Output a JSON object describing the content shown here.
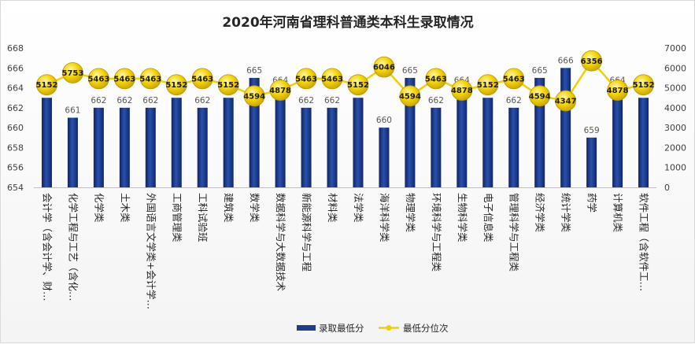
{
  "chart_data": {
    "type": "bar",
    "title": "2020年河南省理科普通类本科生录取情况",
    "categories": [
      "会计学（含会计学、财…",
      "化学工程与工艺（含化…",
      "化学类",
      "土木类",
      "外国语言文学类+会计学…",
      "工商管理类",
      "工科试验班",
      "建筑类",
      "数学类",
      "数据科学与大数据技术",
      "新能源科学与工程",
      "材料类",
      "法学类",
      "海洋科学类",
      "物理学类",
      "环境科学与工程类",
      "生物科学类",
      "电子信息类",
      "管理科学与工程类",
      "经济学类",
      "统计学类",
      "药学",
      "计算机类",
      "软件工程（含软件工…"
    ],
    "series": [
      {
        "name": "录取最低分",
        "type": "bar",
        "axis": "left",
        "color": "#1f3d8f",
        "values": [
          663,
          661,
          662,
          662,
          662,
          663,
          662,
          663,
          665,
          664,
          662,
          662,
          663,
          660,
          665,
          662,
          664,
          663,
          662,
          665,
          666,
          659,
          664,
          663
        ]
      },
      {
        "name": "最低分位次",
        "type": "line",
        "axis": "right",
        "color": "#f0d000",
        "values": [
          5152,
          5753,
          5463,
          5463,
          5463,
          5152,
          5463,
          5152,
          4594,
          4878,
          5463,
          5463,
          5152,
          6046,
          4594,
          5463,
          4878,
          5152,
          5463,
          4594,
          4347,
          6356,
          4878,
          5152
        ]
      }
    ],
    "ylim_left": [
      654,
      668
    ],
    "yticks_left": [
      "654",
      "656",
      "658",
      "660",
      "662",
      "664",
      "666",
      "668"
    ],
    "ylim_right": [
      0,
      7000
    ],
    "yticks_right": [
      "0",
      "1000",
      "2000",
      "3000",
      "4000",
      "5000",
      "6000",
      "7000"
    ],
    "grid": false,
    "legend_position": "bottom"
  }
}
